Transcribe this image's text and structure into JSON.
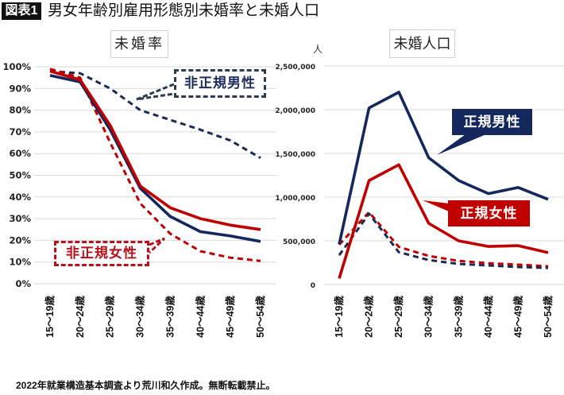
{
  "header": {
    "badge": "図表1",
    "title": "男女年齢別雇用形態別未婚率と未婚人口"
  },
  "annotations": {
    "non_regular_male": "非正規男性",
    "non_regular_female": "非正規女性",
    "regular_male": "正規男性",
    "regular_female": "正規女性"
  },
  "footer": {
    "source": "2022年就業構造基本調査より荒川和久作成。無断転載禁止。"
  },
  "colors": {
    "navy": "#14285e",
    "red": "#c00000",
    "grid": "#dadada"
  },
  "chart_data": [
    {
      "type": "line",
      "title": "未婚率",
      "xlabel": "",
      "ylabel": "",
      "unit": "%",
      "grid": true,
      "ylim": [
        0,
        100
      ],
      "yticks": [
        {
          "value": 0,
          "label": "0%"
        },
        {
          "value": 10,
          "label": "10%"
        },
        {
          "value": 20,
          "label": "20%"
        },
        {
          "value": 30,
          "label": "30%"
        },
        {
          "value": 40,
          "label": "40%"
        },
        {
          "value": 50,
          "label": "50%"
        },
        {
          "value": 60,
          "label": "60%"
        },
        {
          "value": 70,
          "label": "70%"
        },
        {
          "value": 80,
          "label": "80%"
        },
        {
          "value": 90,
          "label": "90%"
        },
        {
          "value": 100,
          "label": "100%"
        }
      ],
      "categories": [
        "15～19歳",
        "20～24歳",
        "25～29歳",
        "30～34歳",
        "35～39歳",
        "40～44歳",
        "45～49歳",
        "50～54歳"
      ],
      "series": [
        {
          "key": "non-regular-male",
          "name": "非正規男性",
          "style": "dashed",
          "color": "#1b2a55",
          "values": [
            98,
            97,
            90,
            80,
            75.5,
            71,
            66,
            58
          ]
        },
        {
          "key": "non-regular-female",
          "name": "非正規女性",
          "style": "dashed",
          "color": "#c00000",
          "values": [
            99,
            95,
            65,
            37,
            23,
            15,
            12,
            10.5
          ]
        },
        {
          "key": "regular-male",
          "name": "正規男性",
          "style": "solid",
          "color": "#14285e",
          "values": [
            96,
            93,
            71,
            44,
            31,
            24,
            22,
            19.5
          ]
        },
        {
          "key": "regular-female",
          "name": "正規女性",
          "style": "solid",
          "color": "#c00000",
          "values": [
            98,
            94,
            73,
            45,
            35,
            30,
            27,
            25
          ]
        }
      ],
      "legend": "callout-labels"
    },
    {
      "type": "line",
      "title": "未婚人口",
      "xlabel": "",
      "ylabel": "人",
      "unit": "人",
      "grid": true,
      "ylim": [
        0,
        2500000
      ],
      "yticks": [
        {
          "value": 0,
          "label": "0"
        },
        {
          "value": 500000,
          "label": "500,000"
        },
        {
          "value": 1000000,
          "label": "1,000,000"
        },
        {
          "value": 1500000,
          "label": "1,500,000"
        },
        {
          "value": 2000000,
          "label": "2,000,000"
        },
        {
          "value": 2500000,
          "label": "2,500,000"
        }
      ],
      "categories": [
        "15～19歳",
        "20～24歳",
        "25～29歳",
        "30～34歳",
        "35～39歳",
        "40～44歳",
        "45～49歳",
        "50～54歳"
      ],
      "series": [
        {
          "key": "non-regular-female",
          "name": "非正規女性",
          "style": "dashed",
          "color": "#c00000",
          "values": [
            455000,
            827000,
            430000,
            327000,
            270000,
            245000,
            227000,
            209000
          ]
        },
        {
          "key": "non-regular-male",
          "name": "非正規男性",
          "style": "dashed",
          "color": "#1b2a55",
          "values": [
            335000,
            810000,
            370000,
            280000,
            235000,
            218000,
            200000,
            190000
          ]
        },
        {
          "key": "regular-female",
          "name": "正規女性",
          "style": "solid",
          "color": "#c00000",
          "values": [
            70000,
            1190000,
            1370000,
            700000,
            500000,
            435000,
            445000,
            365000
          ]
        },
        {
          "key": "regular-male",
          "name": "正規男性",
          "style": "solid",
          "color": "#14285e",
          "values": [
            460000,
            2020000,
            2200000,
            1450000,
            1190000,
            1040000,
            1110000,
            975000
          ]
        }
      ],
      "legend": "callout-labels"
    }
  ]
}
